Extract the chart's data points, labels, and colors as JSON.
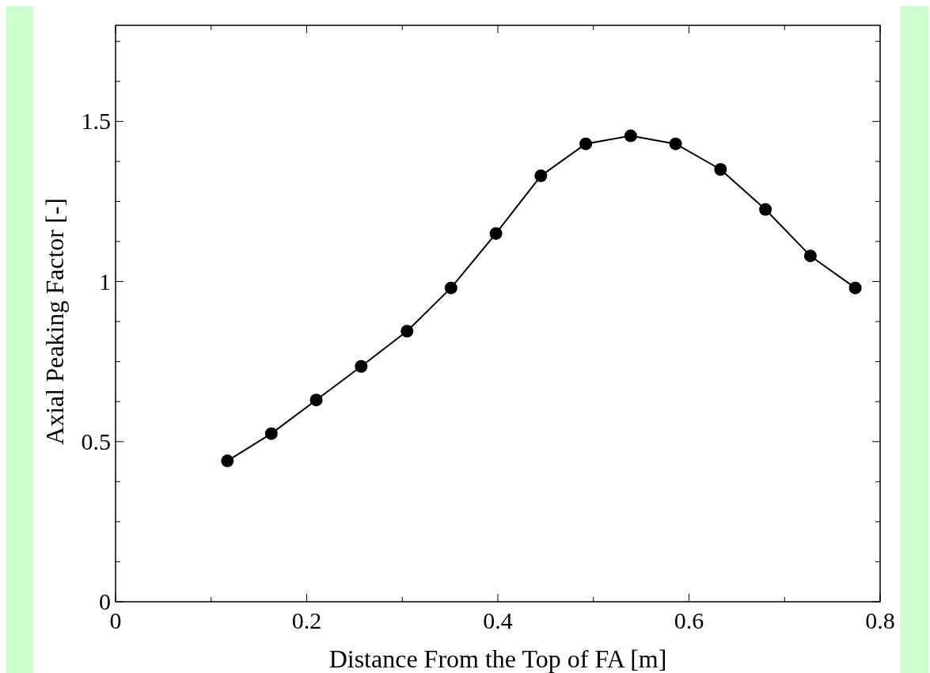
{
  "chart_data": {
    "type": "line",
    "xlabel": "Distance From the Top of FA [m]",
    "ylabel": "Axial Peaking Factor [-]",
    "x": [
      0.117,
      0.163,
      0.21,
      0.257,
      0.305,
      0.351,
      0.398,
      0.445,
      0.492,
      0.539,
      0.586,
      0.633,
      0.68,
      0.727,
      0.774
    ],
    "series": [
      {
        "color": "#000000",
        "values": [
          0.44,
          0.525,
          0.63,
          0.735,
          0.845,
          0.98,
          1.15,
          1.33,
          1.43,
          1.455,
          1.43,
          1.35,
          1.225,
          1.08,
          0.98
        ]
      }
    ],
    "xlim": [
      0,
      0.8
    ],
    "ylim": [
      0,
      1.8
    ],
    "xticks": [
      0,
      {
        "value": 0.1,
        "label": null
      },
      0.2,
      {
        "value": 0.3,
        "label": null
      },
      0.4,
      {
        "value": 0.5,
        "label": null
      },
      0.6,
      {
        "value": 0.7,
        "label": null
      },
      0.8
    ],
    "yticks": [
      0,
      {
        "value": 0.125,
        "label": null
      },
      {
        "value": 0.25,
        "label": null
      },
      {
        "value": 0.375,
        "label": null
      },
      0.5,
      {
        "value": 0.625,
        "label": null
      },
      {
        "value": 0.75,
        "label": null
      },
      {
        "value": 0.875,
        "label": null
      },
      1,
      {
        "value": 1.125,
        "label": null
      },
      {
        "value": 1.25,
        "label": null
      },
      {
        "value": 1.375,
        "label": null
      },
      1.5,
      {
        "value": 1.625,
        "label": null
      },
      {
        "value": 1.75,
        "label": null
      }
    ],
    "marker": "circle",
    "line_style": "solid",
    "grid": false
  }
}
